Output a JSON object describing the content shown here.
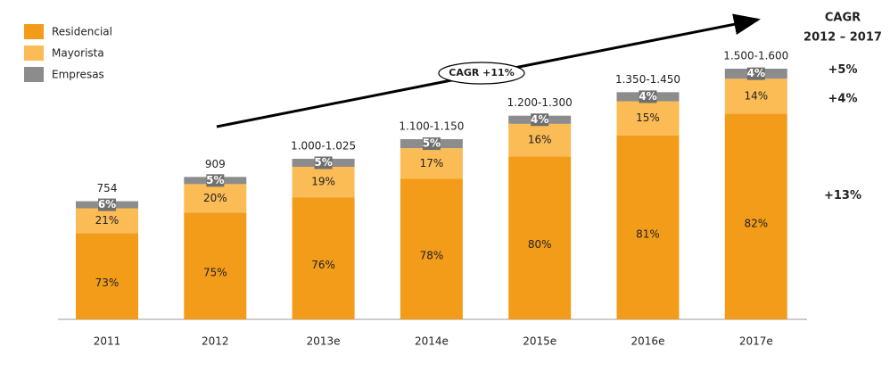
{
  "chart_data": {
    "type": "stacked-bar",
    "categories": [
      "2011",
      "2012",
      "2013e",
      "2014e",
      "2015e",
      "2016e",
      "2017e"
    ],
    "series": [
      {
        "name": "Residencial",
        "color": "#f39c1a",
        "values": [
          73,
          75,
          76,
          78,
          80,
          81,
          82
        ],
        "value_labels": [
          "73%",
          "75%",
          "76%",
          "78%",
          "80%",
          "81%",
          "82%"
        ]
      },
      {
        "name": "Mayorista",
        "color": "#fbbb55",
        "values": [
          21,
          20,
          19,
          17,
          16,
          15,
          14
        ],
        "value_labels": [
          "21%",
          "20%",
          "19%",
          "17%",
          "16%",
          "15%",
          "14%"
        ]
      },
      {
        "name": "Empresas",
        "color": "#8c8c8c",
        "values": [
          6,
          5,
          5,
          5,
          4,
          4,
          4
        ],
        "value_labels": [
          "6%",
          "5%",
          "5%",
          "5%",
          "4%",
          "4%",
          "4%"
        ]
      }
    ],
    "totals": [
      {
        "low": 754,
        "high": 754,
        "label": "754"
      },
      {
        "low": 909,
        "high": 909,
        "label": "909"
      },
      {
        "low": 1000,
        "high": 1025,
        "label": "1.000-1.025"
      },
      {
        "low": 1100,
        "high": 1150,
        "label": "1.100-1.150"
      },
      {
        "low": 1200,
        "high": 1300,
        "label": "1.200-1.300"
      },
      {
        "low": 1350,
        "high": 1450,
        "label": "1.350-1.450"
      },
      {
        "low": 1500,
        "high": 1600,
        "label": "1.500-1.600"
      }
    ],
    "annotations": {
      "cagr_title": [
        "CAGR",
        "2012 – 2017"
      ],
      "trend_label": "CAGR +11%",
      "series_cagr": [
        "+13%",
        "+4%",
        "+5%"
      ]
    },
    "legend": "top-left"
  }
}
